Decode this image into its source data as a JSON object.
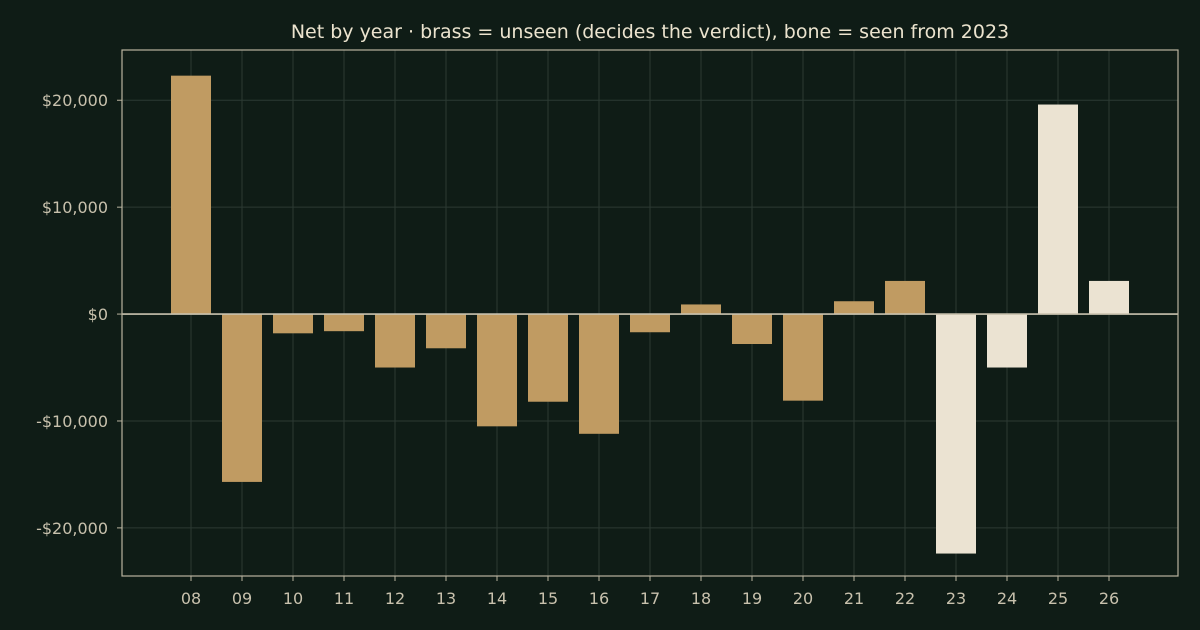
{
  "chart_data": {
    "type": "bar",
    "title": "Net by year  ·  brass = unseen (decides the verdict), bone = seen from 2023",
    "xlabel": "",
    "ylabel": "",
    "categories": [
      "08",
      "09",
      "10",
      "11",
      "12",
      "13",
      "14",
      "15",
      "16",
      "17",
      "18",
      "19",
      "20",
      "21",
      "22",
      "23",
      "24",
      "25",
      "26"
    ],
    "values": [
      22300,
      -15700,
      -1800,
      -1600,
      -5000,
      -3200,
      -10500,
      -8200,
      -11200,
      -1700,
      900,
      -2800,
      -8100,
      1200,
      3100,
      -22400,
      -5000,
      19600,
      3100
    ],
    "groups": [
      "unseen",
      "unseen",
      "unseen",
      "unseen",
      "unseen",
      "unseen",
      "unseen",
      "unseen",
      "unseen",
      "unseen",
      "unseen",
      "unseen",
      "unseen",
      "unseen",
      "unseen",
      "seen",
      "seen",
      "seen",
      "seen"
    ],
    "ylim": [
      -24500,
      24700
    ],
    "yticks": [
      -20000,
      -10000,
      0,
      10000,
      20000
    ],
    "ytick_labels": [
      "-$20,000",
      "-$10,000",
      "$0",
      "$10,000",
      "$20,000"
    ],
    "grid": true,
    "legend": "none",
    "colors": {
      "unseen": "#c09b62",
      "seen": "#ebe3d2",
      "background": "#0f1c16",
      "grid": "#2c3a33",
      "axis": "#b9b39f"
    }
  }
}
